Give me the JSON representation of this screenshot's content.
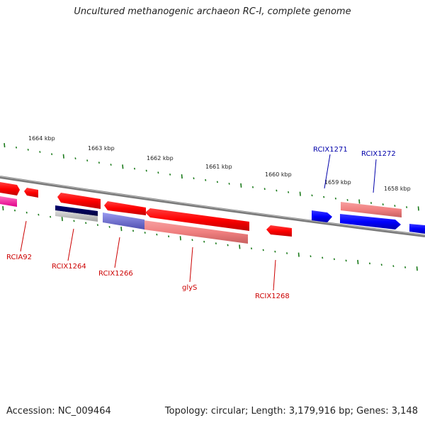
{
  "title": "Uncultured methanogenic archaeon RC-I, complete genome",
  "footer": {
    "accession": "Accession: NC_009464",
    "summary": "Topology: circular; Length: 3,179,916 bp; Genes: 3,148"
  },
  "ruler_labels": [
    "1664 kbp",
    "1663 kbp",
    "1662 kbp",
    "1661 kbp",
    "1660 kbp",
    "1659 kbp",
    "1658 kbp"
  ],
  "gene_labels": {
    "rcia92": "RCIA92",
    "rcix1264": "RCIX1264",
    "rcix1266": "RCIX1266",
    "glys": "glyS",
    "rcix1268": "RCIX1268",
    "rcix1271": "RCIX1271",
    "rcix1272": "RCIX1272"
  },
  "colors": {
    "forward_gene": "#ff0000",
    "reverse_gene": "#0000ff",
    "forward_label": "#cc0000",
    "reverse_label": "#0000aa",
    "ruler_tick": "#1a7a1a",
    "backbone": "#808080"
  }
}
